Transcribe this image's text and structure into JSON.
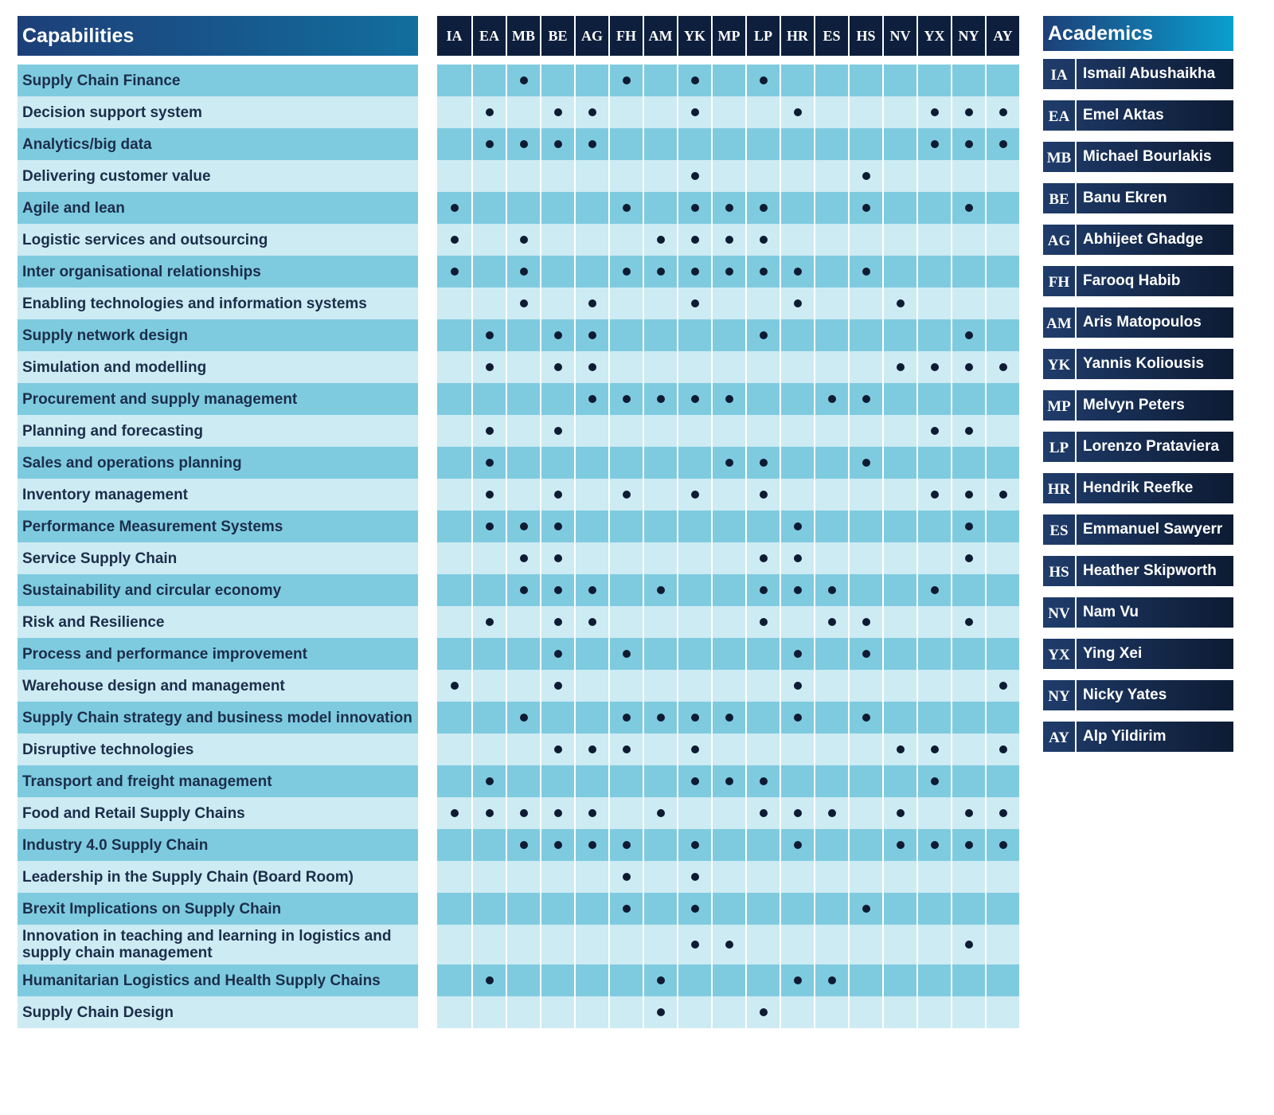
{
  "capabilities_title": "Capabilities",
  "academics_title": "Academics",
  "academics": [
    {
      "code": "IA",
      "name": "Ismail Abushaikha"
    },
    {
      "code": "EA",
      "name": "Emel Aktas"
    },
    {
      "code": "MB",
      "name": "Michael Bourlakis"
    },
    {
      "code": "BE",
      "name": "Banu Ekren"
    },
    {
      "code": "AG",
      "name": "Abhijeet Ghadge"
    },
    {
      "code": "FH",
      "name": "Farooq Habib"
    },
    {
      "code": "AM",
      "name": "Aris Matopoulos"
    },
    {
      "code": "YK",
      "name": "Yannis Koliousis"
    },
    {
      "code": "MP",
      "name": "Melvyn Peters"
    },
    {
      "code": "LP",
      "name": "Lorenzo Prataviera"
    },
    {
      "code": "HR",
      "name": "Hendrik Reefke"
    },
    {
      "code": "ES",
      "name": "Emmanuel Sawyerr"
    },
    {
      "code": "HS",
      "name": "Heather Skipworth"
    },
    {
      "code": "NV",
      "name": "Nam Vu"
    },
    {
      "code": "YX",
      "name": "Ying Xei"
    },
    {
      "code": "NY",
      "name": "Nicky Yates"
    },
    {
      "code": "AY",
      "name": "Alp Yildirim"
    }
  ],
  "rows": [
    {
      "capability": "Supply Chain Finance",
      "marks": [
        false,
        false,
        true,
        false,
        false,
        true,
        false,
        true,
        false,
        true,
        false,
        false,
        false,
        false,
        false,
        false,
        false
      ]
    },
    {
      "capability": "Decision support system",
      "marks": [
        false,
        true,
        false,
        true,
        true,
        false,
        false,
        true,
        false,
        false,
        true,
        false,
        false,
        false,
        true,
        true,
        true
      ]
    },
    {
      "capability": "Analytics/big data",
      "marks": [
        false,
        true,
        true,
        true,
        true,
        false,
        false,
        false,
        false,
        false,
        false,
        false,
        false,
        false,
        true,
        true,
        true
      ]
    },
    {
      "capability": "Delivering customer value",
      "marks": [
        false,
        false,
        false,
        false,
        false,
        false,
        false,
        true,
        false,
        false,
        false,
        false,
        true,
        false,
        false,
        false,
        false
      ]
    },
    {
      "capability": "Agile and lean",
      "marks": [
        true,
        false,
        false,
        false,
        false,
        true,
        false,
        true,
        true,
        true,
        false,
        false,
        true,
        false,
        false,
        true,
        false
      ]
    },
    {
      "capability": "Logistic services and outsourcing",
      "marks": [
        true,
        false,
        true,
        false,
        false,
        false,
        true,
        true,
        true,
        true,
        false,
        false,
        false,
        false,
        false,
        false,
        false
      ]
    },
    {
      "capability": "Inter organisational relationships",
      "marks": [
        true,
        false,
        true,
        false,
        false,
        true,
        true,
        true,
        true,
        true,
        true,
        false,
        true,
        false,
        false,
        false,
        false
      ]
    },
    {
      "capability": "Enabling technologies and information systems",
      "marks": [
        false,
        false,
        true,
        false,
        true,
        false,
        false,
        true,
        false,
        false,
        true,
        false,
        false,
        true,
        false,
        false,
        false
      ]
    },
    {
      "capability": "Supply network design",
      "marks": [
        false,
        true,
        false,
        true,
        true,
        false,
        false,
        false,
        false,
        true,
        false,
        false,
        false,
        false,
        false,
        true,
        false
      ]
    },
    {
      "capability": "Simulation and modelling",
      "marks": [
        false,
        true,
        false,
        true,
        true,
        false,
        false,
        false,
        false,
        false,
        false,
        false,
        false,
        true,
        true,
        true,
        true
      ]
    },
    {
      "capability": "Procurement and supply management",
      "marks": [
        false,
        false,
        false,
        false,
        true,
        true,
        true,
        true,
        true,
        false,
        false,
        true,
        true,
        false,
        false,
        false,
        false
      ]
    },
    {
      "capability": "Planning and forecasting",
      "marks": [
        false,
        true,
        false,
        true,
        false,
        false,
        false,
        false,
        false,
        false,
        false,
        false,
        false,
        false,
        true,
        true,
        false
      ]
    },
    {
      "capability": "Sales and operations planning",
      "marks": [
        false,
        true,
        false,
        false,
        false,
        false,
        false,
        false,
        true,
        true,
        false,
        false,
        true,
        false,
        false,
        false,
        false
      ]
    },
    {
      "capability": "Inventory management",
      "marks": [
        false,
        true,
        false,
        true,
        false,
        true,
        false,
        true,
        false,
        true,
        false,
        false,
        false,
        false,
        true,
        true,
        true
      ]
    },
    {
      "capability": "Performance Measurement Systems",
      "marks": [
        false,
        true,
        true,
        true,
        false,
        false,
        false,
        false,
        false,
        false,
        true,
        false,
        false,
        false,
        false,
        true,
        false
      ]
    },
    {
      "capability": "Service Supply Chain",
      "marks": [
        false,
        false,
        true,
        true,
        false,
        false,
        false,
        false,
        false,
        true,
        true,
        false,
        false,
        false,
        false,
        true,
        false
      ]
    },
    {
      "capability": "Sustainability and circular economy",
      "marks": [
        false,
        false,
        true,
        true,
        true,
        false,
        true,
        false,
        false,
        true,
        true,
        true,
        false,
        false,
        true,
        false,
        false
      ]
    },
    {
      "capability": "Risk and Resilience",
      "marks": [
        false,
        true,
        false,
        true,
        true,
        false,
        false,
        false,
        false,
        true,
        false,
        true,
        true,
        false,
        false,
        true,
        false
      ]
    },
    {
      "capability": "Process and performance improvement",
      "marks": [
        false,
        false,
        false,
        true,
        false,
        true,
        false,
        false,
        false,
        false,
        true,
        false,
        true,
        false,
        false,
        false,
        false
      ]
    },
    {
      "capability": "Warehouse design and management",
      "marks": [
        true,
        false,
        false,
        true,
        false,
        false,
        false,
        false,
        false,
        false,
        true,
        false,
        false,
        false,
        false,
        false,
        true
      ]
    },
    {
      "capability": "Supply Chain strategy and business model innovation",
      "marks": [
        false,
        false,
        true,
        false,
        false,
        true,
        true,
        true,
        true,
        false,
        true,
        false,
        true,
        false,
        false,
        false,
        false
      ]
    },
    {
      "capability": "Disruptive technologies",
      "marks": [
        false,
        false,
        false,
        true,
        true,
        true,
        false,
        true,
        false,
        false,
        false,
        false,
        false,
        true,
        true,
        false,
        true
      ]
    },
    {
      "capability": "Transport and freight management",
      "marks": [
        false,
        true,
        false,
        false,
        false,
        false,
        false,
        true,
        true,
        true,
        false,
        false,
        false,
        false,
        true,
        false,
        false
      ]
    },
    {
      "capability": "Food and Retail Supply Chains",
      "marks": [
        true,
        true,
        true,
        true,
        true,
        false,
        true,
        false,
        false,
        true,
        true,
        true,
        false,
        true,
        false,
        true,
        true
      ]
    },
    {
      "capability": "Industry 4.0 Supply Chain",
      "marks": [
        false,
        false,
        true,
        true,
        true,
        true,
        false,
        true,
        false,
        false,
        true,
        false,
        false,
        true,
        true,
        true,
        true
      ]
    },
    {
      "capability": "Leadership in the Supply Chain (Board Room)",
      "marks": [
        false,
        false,
        false,
        false,
        false,
        true,
        false,
        true,
        false,
        false,
        false,
        false,
        false,
        false,
        false,
        false,
        false
      ]
    },
    {
      "capability": "Brexit Implications on Supply Chain",
      "marks": [
        false,
        false,
        false,
        false,
        false,
        true,
        false,
        true,
        false,
        false,
        false,
        false,
        true,
        false,
        false,
        false,
        false
      ]
    },
    {
      "capability": "Innovation in teaching and learning in logistics and supply chain management",
      "marks": [
        false,
        false,
        false,
        false,
        false,
        false,
        false,
        true,
        true,
        false,
        false,
        false,
        false,
        false,
        false,
        true,
        false
      ]
    },
    {
      "capability": "Humanitarian Logistics and Health Supply Chains",
      "marks": [
        false,
        true,
        false,
        false,
        false,
        false,
        true,
        false,
        false,
        false,
        true,
        true,
        false,
        false,
        false,
        false,
        false
      ]
    },
    {
      "capability": "Supply Chain Design",
      "marks": [
        false,
        false,
        false,
        false,
        false,
        false,
        true,
        false,
        false,
        true,
        false,
        false,
        false,
        false,
        false,
        false,
        false
      ]
    }
  ]
}
